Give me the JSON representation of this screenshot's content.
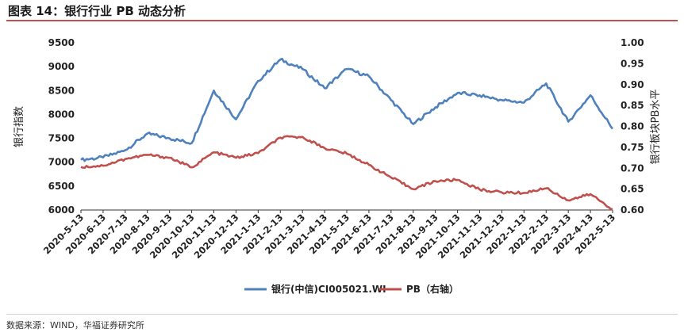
{
  "figure_title": "图表 14：银行行业 PB 动态分析",
  "source_note": "数据来源：WIND，华福证券研究所",
  "chart_data": {
    "type": "line",
    "title": "图表 14：银行行业 PB 动态分析",
    "ylabel": "银行指数",
    "y2label": "银行板块PB水平",
    "ylim": [
      6000,
      9500
    ],
    "y2lim": [
      0.6,
      1.0
    ],
    "yticks": [
      "6000",
      "6500",
      "7000",
      "7500",
      "8000",
      "8500",
      "9000",
      "9500"
    ],
    "y2ticks": [
      "0.60",
      "0.65",
      "0.70",
      "0.75",
      "0.80",
      "0.85",
      "0.90",
      "0.95",
      "1.00"
    ],
    "grid": false,
    "legend": "bottom-center",
    "x": [
      "2020-5-13",
      "2020-6-13",
      "2020-7-13",
      "2020-8-13",
      "2020-9-13",
      "2020-10-13",
      "2020-11-13",
      "2020-12-13",
      "2021-1-13",
      "2021-2-13",
      "2021-3-13",
      "2021-4-13",
      "2021-5-13",
      "2021-6-13",
      "2021-7-13",
      "2021-8-13",
      "2021-9-13",
      "2021-10-13",
      "2021-11-13",
      "2021-12-13",
      "2022-1-13",
      "2022-2-13",
      "2022-3-13",
      "2022-4-13",
      "2022-5-13"
    ],
    "series": [
      {
        "name": "银行(中信)CI005021.WI",
        "axis": "left",
        "color": "#4f81bd",
        "values": [
          7050,
          7100,
          7250,
          7600,
          7500,
          7400,
          8500,
          7900,
          8700,
          9150,
          8950,
          8550,
          8950,
          8800,
          8300,
          7800,
          8150,
          8450,
          8400,
          8300,
          8250,
          8650,
          7850,
          8400,
          7700
        ]
      },
      {
        "name": "PB（右轴）",
        "axis": "right",
        "color": "#c0504d",
        "values": [
          0.703,
          0.706,
          0.722,
          0.732,
          0.725,
          0.702,
          0.738,
          0.725,
          0.736,
          0.773,
          0.775,
          0.748,
          0.735,
          0.708,
          0.678,
          0.65,
          0.669,
          0.672,
          0.649,
          0.642,
          0.641,
          0.652,
          0.623,
          0.638,
          0.602
        ]
      }
    ]
  }
}
